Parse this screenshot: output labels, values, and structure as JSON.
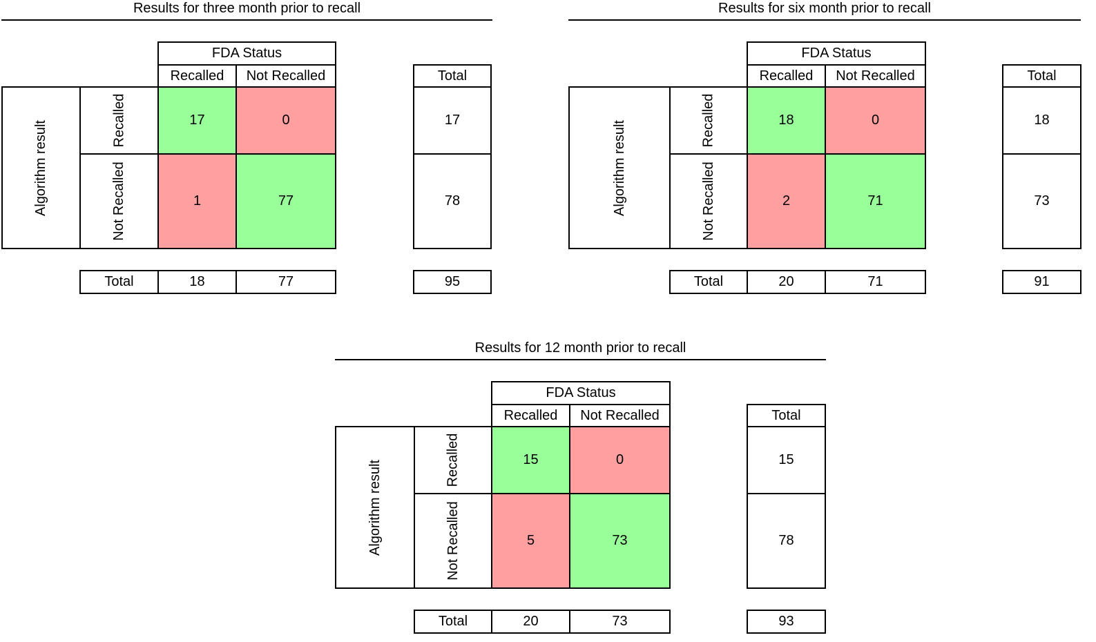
{
  "colors": {
    "correct": "#99ff99",
    "incorrect": "#ff9f9f",
    "line": "#000000"
  },
  "matrices": [
    {
      "title": "Results for three month prior to recall",
      "header": "FDA Status",
      "col_labels": [
        "Recalled",
        "Not Recalled"
      ],
      "row_axis": "Algorithm result",
      "row_labels": [
        "Recalled",
        "Not Recalled"
      ],
      "total_label": "Total",
      "cells": [
        [
          "17",
          "0"
        ],
        [
          "1",
          "77"
        ]
      ],
      "row_totals": [
        "17",
        "78"
      ],
      "col_totals": [
        "18",
        "77"
      ],
      "grand_total": "95"
    },
    {
      "title": "Results for six month prior to recall",
      "header": "FDA Status",
      "col_labels": [
        "Recalled",
        "Not Recalled"
      ],
      "row_axis": "Algorithm result",
      "row_labels": [
        "Recalled",
        "Not Recalled"
      ],
      "total_label": "Total",
      "cells": [
        [
          "18",
          "0"
        ],
        [
          "2",
          "71"
        ]
      ],
      "row_totals": [
        "18",
        "73"
      ],
      "col_totals": [
        "20",
        "71"
      ],
      "grand_total": "91"
    },
    {
      "title": "Results for 12 month prior to recall",
      "header": "FDA Status",
      "col_labels": [
        "Recalled",
        "Not Recalled"
      ],
      "row_axis": "Algorithm result",
      "row_labels": [
        "Recalled",
        "Not Recalled"
      ],
      "total_label": "Total",
      "cells": [
        [
          "15",
          "0"
        ],
        [
          "5",
          "73"
        ]
      ],
      "row_totals": [
        "15",
        "78"
      ],
      "col_totals": [
        "20",
        "73"
      ],
      "grand_total": "93"
    }
  ]
}
